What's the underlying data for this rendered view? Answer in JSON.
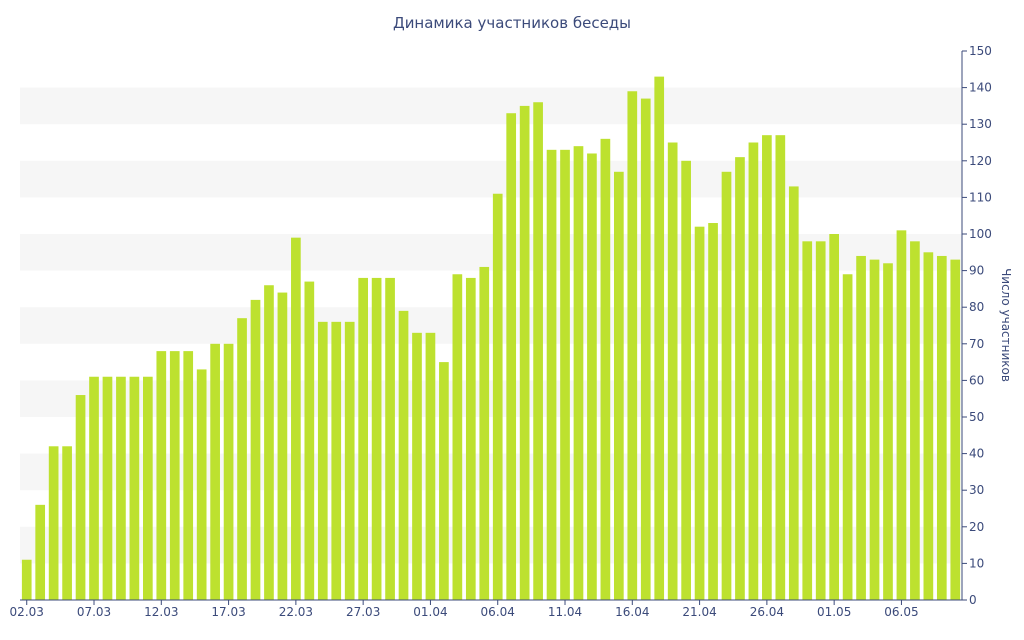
{
  "chart_data": {
    "type": "bar",
    "title": "Динамика участников беседы",
    "ylabel": "Число участников",
    "xlabel": "",
    "ylim": [
      0,
      150
    ],
    "y_ticks": [
      0,
      10,
      20,
      30,
      40,
      50,
      60,
      70,
      80,
      90,
      100,
      110,
      120,
      130,
      140,
      150
    ],
    "y_axis_position": "right",
    "grid": "alternating horizontal bands",
    "bar_color": "#bde12f",
    "text_color": "#3b4a7a",
    "band_color": "#f6f6f6",
    "x_tick_labels": [
      {
        "index": 0,
        "label": "02.03"
      },
      {
        "index": 5,
        "label": "07.03"
      },
      {
        "index": 10,
        "label": "12.03"
      },
      {
        "index": 15,
        "label": "17.03"
      },
      {
        "index": 20,
        "label": "22.03"
      },
      {
        "index": 25,
        "label": "27.03"
      },
      {
        "index": 30,
        "label": "01.04"
      },
      {
        "index": 35,
        "label": "06.04"
      },
      {
        "index": 40,
        "label": "11.04"
      },
      {
        "index": 45,
        "label": "16.04"
      },
      {
        "index": 50,
        "label": "21.04"
      },
      {
        "index": 55,
        "label": "26.04"
      },
      {
        "index": 60,
        "label": "01.05"
      },
      {
        "index": 65,
        "label": "06.05"
      }
    ],
    "values": [
      11,
      26,
      42,
      42,
      56,
      61,
      61,
      61,
      61,
      61,
      68,
      68,
      68,
      63,
      70,
      70,
      77,
      82,
      86,
      84,
      99,
      87,
      76,
      76,
      76,
      88,
      88,
      88,
      79,
      73,
      73,
      65,
      89,
      88,
      91,
      111,
      133,
      135,
      136,
      123,
      123,
      124,
      122,
      126,
      117,
      139,
      137,
      143,
      125,
      120,
      102,
      103,
      117,
      121,
      125,
      127,
      127,
      113,
      98,
      98,
      100,
      89,
      94,
      93,
      92,
      101,
      98,
      95,
      94,
      93
    ]
  }
}
